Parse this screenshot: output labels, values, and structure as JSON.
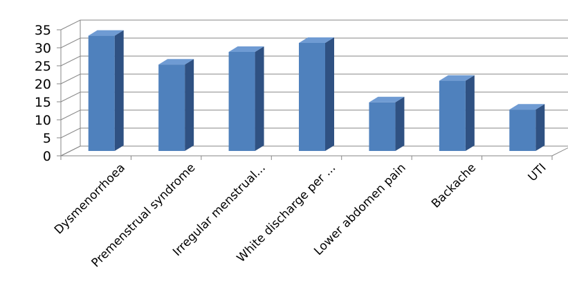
{
  "chart_data": {
    "type": "bar",
    "three_d": true,
    "categories": [
      "Dysmenorrhoea",
      "Premenstrual syndrome",
      "Irregular menstrual...",
      "White discharge per ...",
      "Lower abdomen pain",
      "Backache",
      "UTI"
    ],
    "values": [
      32,
      24,
      27.5,
      30,
      13.5,
      19.5,
      11.5
    ],
    "title": "",
    "xlabel": "",
    "ylabel": "",
    "ylim": [
      0,
      35
    ],
    "yticks": [
      0,
      5,
      10,
      15,
      20,
      25,
      30,
      35
    ],
    "grid": true,
    "legend": "none",
    "colors": {
      "bar_front": "#4f81bd",
      "bar_side": "#2f5182",
      "bar_top": "#6f9bd3",
      "grid": "#868686",
      "text": "#000000"
    }
  }
}
